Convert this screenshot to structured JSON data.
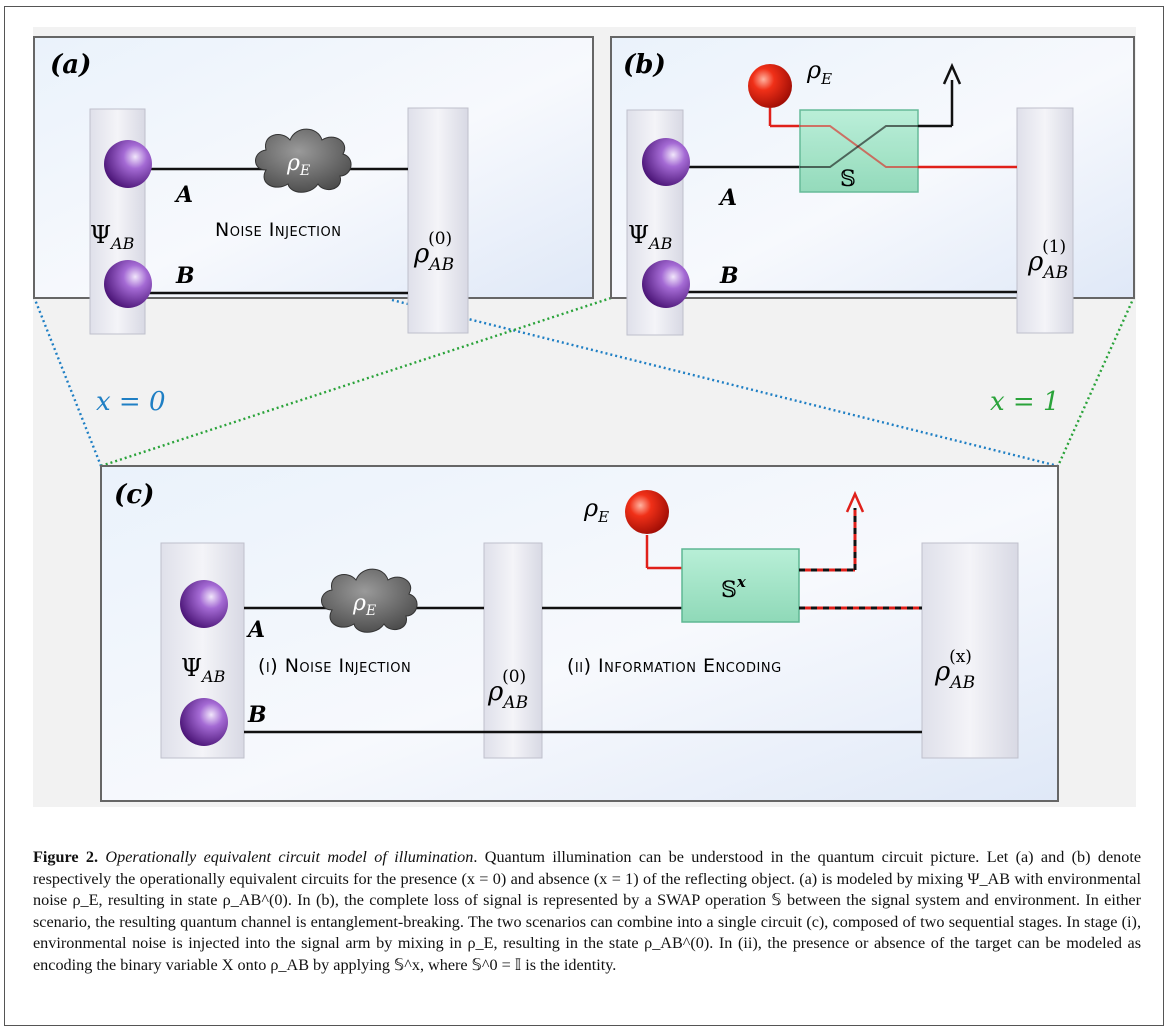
{
  "figure": {
    "panels": {
      "a": {
        "label": "(a)",
        "psi": "Ψ",
        "psi_sub": "AB",
        "wire_a": "A",
        "wire_b": "B",
        "noise_rho": "ρ",
        "noise_sub": "E",
        "stage_text": "Noise Injection",
        "out_rho": "ρ",
        "out_sub": "AB",
        "out_sup": "(0)"
      },
      "b": {
        "label": "(b)",
        "psi": "Ψ",
        "psi_sub": "AB",
        "wire_a": "A",
        "wire_b": "B",
        "env_rho": "ρ",
        "env_sub": "E",
        "swap": "𝕊",
        "out_rho": "ρ",
        "out_sub": "AB",
        "out_sup": "(1)"
      },
      "c": {
        "label": "(c)",
        "psi": "Ψ",
        "psi_sub": "AB",
        "wire_a": "A",
        "wire_b": "B",
        "noise_rho": "ρ",
        "noise_sub": "E",
        "stage1_text": "(i) Noise Injection",
        "mid_rho": "ρ",
        "mid_sub": "AB",
        "mid_sup": "(0)",
        "env_rho": "ρ",
        "env_sub": "E",
        "swap": "𝕊",
        "swap_sup": "x",
        "stage2_text": "(ii) Information Encoding",
        "out_rho": "ρ",
        "out_sub": "AB",
        "out_sup": "(x)"
      }
    },
    "x0_label": "x = 0",
    "x1_label": "x = 1",
    "colors": {
      "x0": "#1f7fc4",
      "x1": "#2aa33a",
      "env_wire": "#e0201a",
      "swap_fill": "#9fe3c5"
    }
  },
  "caption": {
    "label": "Figure 2.",
    "title": "Operationally equivalent circuit model of illumination",
    "body": ". Quantum illumination can be understood in the quantum circuit picture. Let (a) and (b) denote respectively the operationally equivalent circuits for the presence (x = 0) and absence (x = 1) of the reflecting object. (a) is modeled by mixing Ψ_AB with environmental noise ρ_E, resulting in state ρ_AB^(0). In (b), the complete loss of signal is represented by a SWAP operation 𝕊 between the signal system and environment. In either scenario, the resulting quantum channel is entanglement-breaking. The two scenarios can combine into a single circuit (c), composed of two sequential stages. In stage (i), environmental noise is injected into the signal arm by mixing in ρ_E, resulting in the state ρ_AB^(0). In (ii), the presence or absence of the target can be modeled as encoding the binary variable X onto ρ_AB by applying 𝕊^x, where 𝕊^0 = 𝕀 is the identity."
  }
}
